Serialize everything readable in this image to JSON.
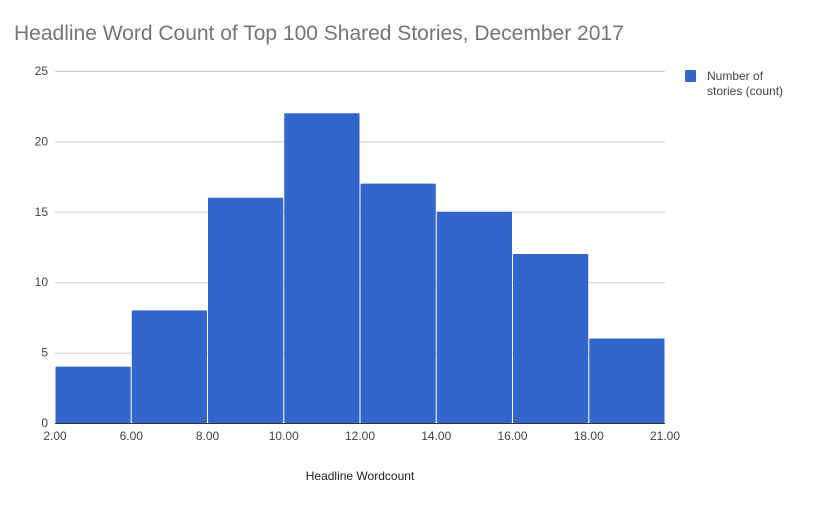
{
  "chart_data": {
    "type": "bar",
    "title": "Headline Word Count of Top 100 Shared Stories, December 2017",
    "xlabel": "Headline Wordcount",
    "ylabel": "",
    "bin_edges": [
      "2.00",
      "6.00",
      "8.00",
      "10.00",
      "12.00",
      "14.00",
      "16.00",
      "18.00",
      "21.00"
    ],
    "series": [
      {
        "name": "Number of stories (count)",
        "values": [
          4,
          8,
          16,
          22,
          17,
          15,
          12,
          6
        ]
      }
    ],
    "ylim": [
      0,
      25
    ],
    "yticks": [
      0,
      5,
      10,
      15,
      20,
      25
    ],
    "grid": true,
    "legend_placement": "top-right",
    "legend_lines": [
      "Number of",
      "stories (count)"
    ],
    "colors": {
      "bar": "#3366cc",
      "grid": "#cccccc",
      "text": "#444444",
      "title": "#757575"
    }
  }
}
